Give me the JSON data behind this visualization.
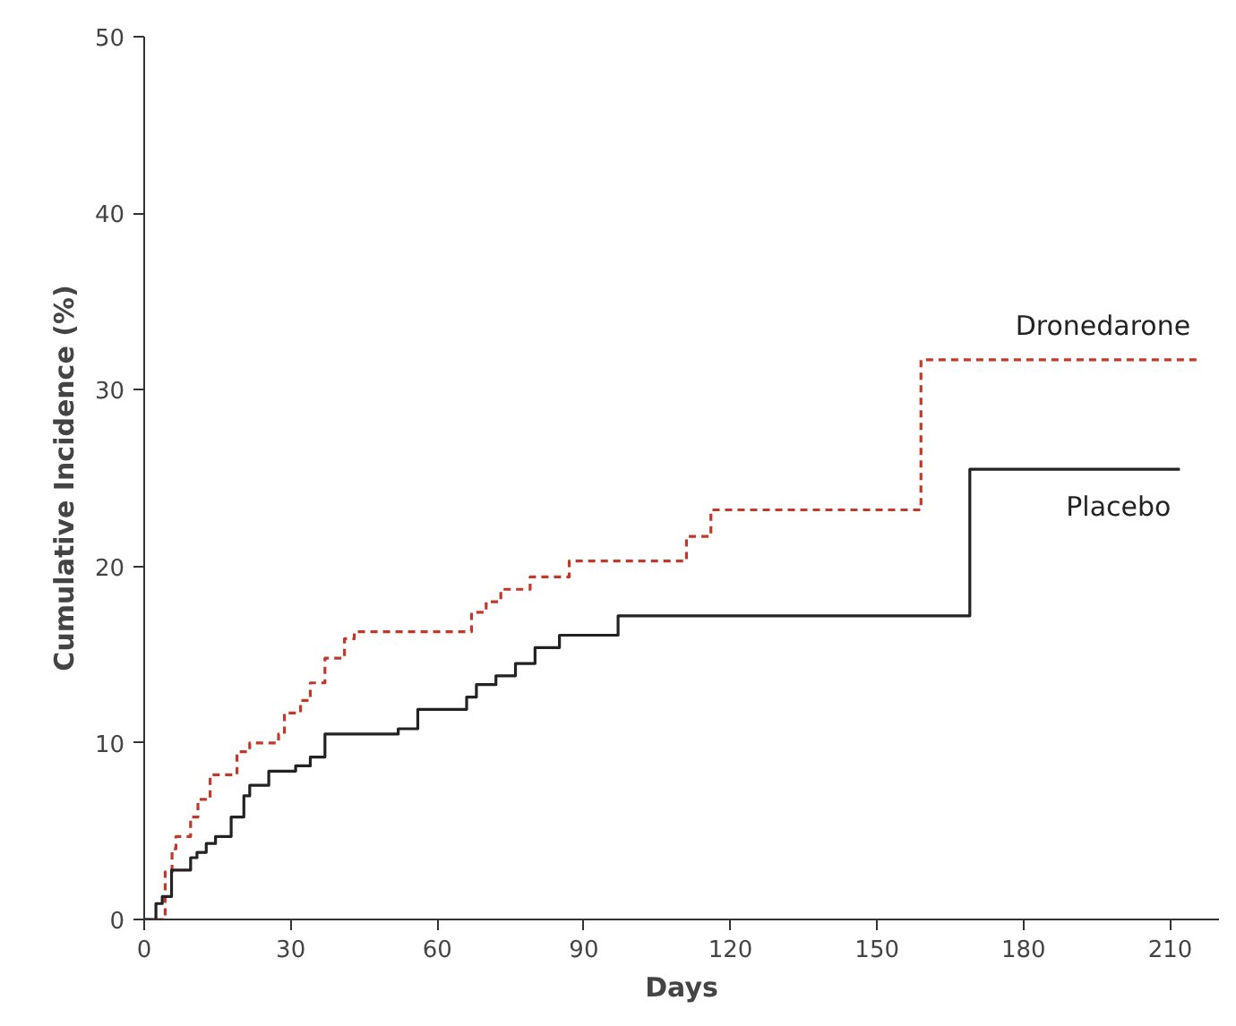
{
  "chart_data": {
    "type": "step",
    "xlabel": "Days",
    "ylabel": "Cumulative Incidence (%)",
    "xlim": [
      0,
      220
    ],
    "ylim": [
      0,
      50
    ],
    "xticks": [
      0,
      30,
      60,
      90,
      120,
      150,
      180,
      210
    ],
    "yticks": [
      0,
      10,
      20,
      30,
      40,
      50
    ],
    "grid": false,
    "series": [
      {
        "name": "Dronedarone",
        "color": "#c0392b",
        "line_style": "dashed",
        "x": [
          0,
          4.3,
          5.7,
          6.5,
          9.5,
          11,
          13.5,
          19,
          21.6,
          27.5,
          28.7,
          32,
          34,
          37,
          41,
          43,
          67,
          70,
          73,
          79,
          87,
          111,
          116,
          159,
          216
        ],
        "values": [
          0,
          2.7,
          4.0,
          4.7,
          5.8,
          6.8,
          8.2,
          9.5,
          10,
          10.5,
          11.7,
          12.4,
          13.4,
          14.8,
          15.9,
          16.3,
          17.4,
          18.0,
          18.7,
          19.4,
          20.3,
          21.7,
          23.2,
          31.7,
          31.7
        ]
      },
      {
        "name": "Placebo",
        "color": "#222222",
        "line_style": "solid",
        "x": [
          0,
          2.4,
          3.7,
          5.6,
          9.5,
          10.8,
          12.7,
          14.6,
          17.8,
          20.4,
          21.6,
          25.5,
          31,
          34,
          37,
          52,
          56,
          66,
          68,
          72,
          76,
          80,
          85,
          97,
          169,
          212
        ],
        "values": [
          0,
          0.9,
          1.3,
          2.8,
          3.5,
          3.8,
          4.3,
          4.7,
          5.8,
          7.0,
          7.6,
          8.4,
          8.7,
          9.2,
          10.5,
          10.8,
          11.9,
          12.6,
          13.3,
          13.8,
          14.5,
          15.4,
          16.1,
          17.2,
          25.5,
          25.5
        ]
      }
    ]
  }
}
